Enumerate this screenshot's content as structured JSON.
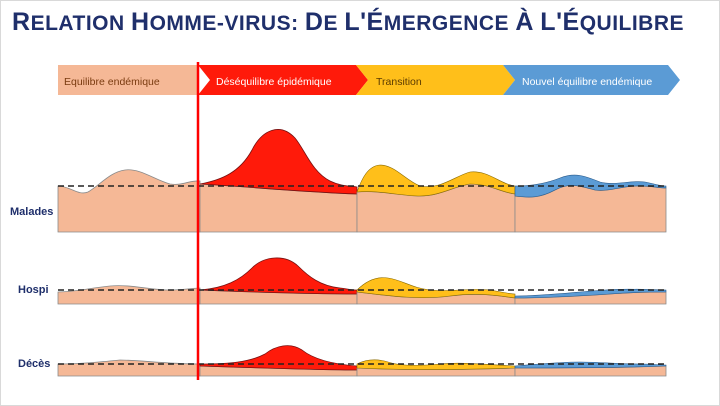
{
  "title": "Relation homme-virus: de l'émergence à l'équilibre",
  "phases": [
    {
      "label": "Equilibre endémique",
      "color": "#f5b896"
    },
    {
      "label": "Déséquilibre épidémique",
      "color": "#ff1a0a"
    },
    {
      "label": "Transition",
      "color": "#ffbf1a"
    },
    {
      "label": "Nouvel équilibre endémique",
      "color": "#5b9bd5"
    }
  ],
  "rows": [
    {
      "label": "Malades"
    },
    {
      "label": "Hospi"
    },
    {
      "label": "Décès"
    }
  ],
  "colors": {
    "base": "#f5b896",
    "epidemic": "#ff1a0a",
    "transition": "#ffbf1a",
    "endemic_new": "#5b9bd5",
    "title": "#1f2f6b",
    "marker_line": "#ff0000"
  }
}
